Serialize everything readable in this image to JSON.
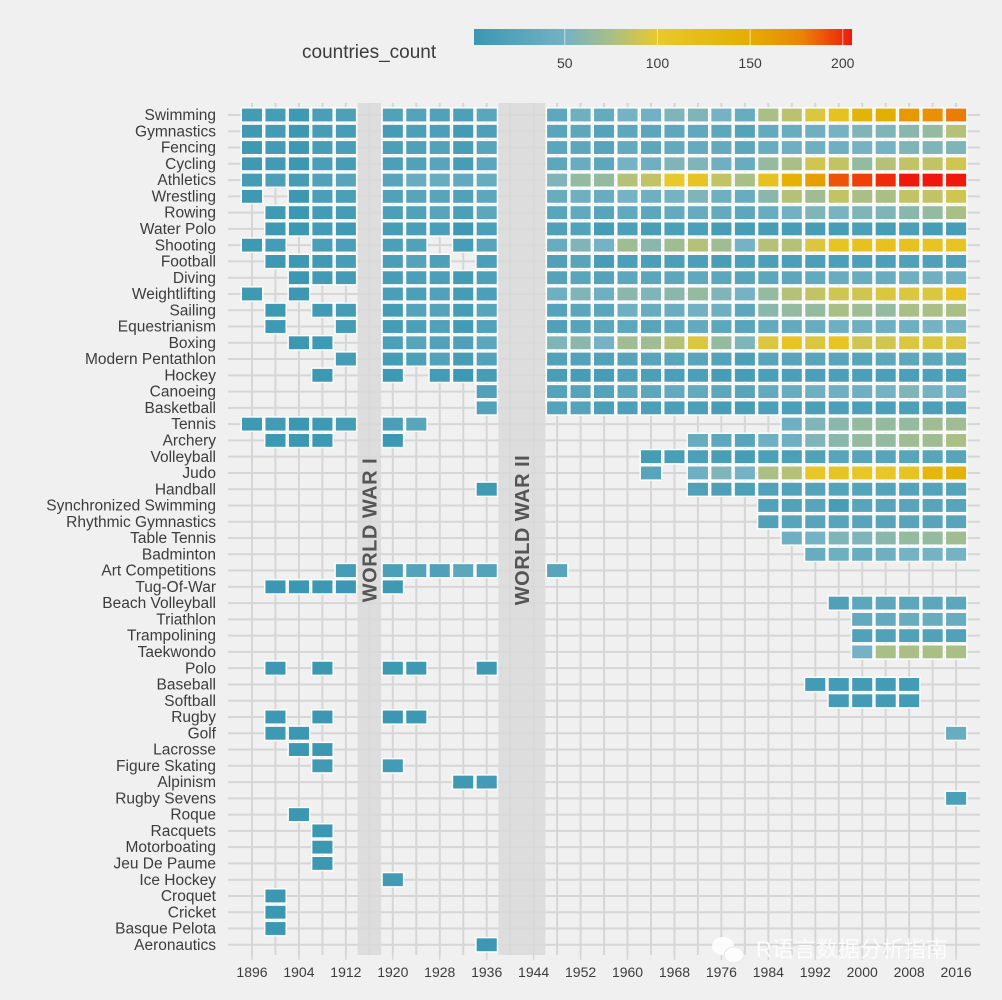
{
  "chart_data": {
    "type": "heatmap",
    "title": "",
    "xlabel": "",
    "ylabel": "",
    "legend": {
      "title": "countries_count",
      "placement": "top",
      "ticks": [
        "50",
        "100",
        "150",
        "200"
      ],
      "range": [
        1,
        205
      ]
    },
    "color_scale": [
      {
        "value": 1,
        "color": "#3b97b2"
      },
      {
        "value": 50,
        "color": "#74b2c4"
      },
      {
        "value": 78,
        "color": "#b0c07e"
      },
      {
        "value": 100,
        "color": "#e8c92c"
      },
      {
        "value": 150,
        "color": "#e3ae00"
      },
      {
        "value": 178,
        "color": "#ea8408"
      },
      {
        "value": 205,
        "color": "#f0180a"
      }
    ],
    "x_ticks": [
      "1896",
      "1904",
      "1912",
      "1920",
      "1928",
      "1936",
      "1944",
      "1952",
      "1960",
      "1968",
      "1976",
      "1984",
      "1992",
      "2000",
      "2008",
      "2016"
    ],
    "games": [
      1896,
      1900,
      1904,
      1908,
      1912,
      1920,
      1924,
      1928,
      1932,
      1936,
      1948,
      1952,
      1956,
      1960,
      1964,
      1968,
      1972,
      1976,
      1980,
      1984,
      1988,
      1992,
      1996,
      2000,
      2004,
      2008,
      2012,
      2016
    ],
    "annotations": [
      {
        "label": "WORLD WAR I",
        "years": [
          1916
        ]
      },
      {
        "label": "WORLD WAR II",
        "years": [
          1940,
          1944
        ]
      }
    ],
    "rows": [
      {
        "sport": "Swimming",
        "values": [
          9,
          12,
          4,
          14,
          17,
          19,
          23,
          20,
          17,
          28,
          31,
          45,
          37,
          50,
          48,
          55,
          55,
          50,
          40,
          75,
          82,
          95,
          115,
          140,
          148,
          165,
          170,
          180
        ]
      },
      {
        "sport": "Gymnastics",
        "values": [
          5,
          8,
          2,
          12,
          12,
          10,
          15,
          16,
          9,
          17,
          27,
          30,
          22,
          30,
          28,
          31,
          32,
          30,
          22,
          35,
          40,
          45,
          50,
          55,
          55,
          60,
          65,
          80
        ]
      },
      {
        "sport": "Fencing",
        "values": [
          4,
          8,
          3,
          12,
          14,
          15,
          18,
          21,
          13,
          25,
          28,
          30,
          25,
          35,
          30,
          35,
          37,
          35,
          30,
          40,
          45,
          45,
          45,
          50,
          50,
          55,
          55,
          55
        ]
      },
      {
        "sport": "Cycling",
        "values": [
          5,
          7,
          2,
          14,
          12,
          15,
          20,
          25,
          12,
          28,
          30,
          40,
          30,
          50,
          45,
          55,
          55,
          45,
          40,
          65,
          75,
          90,
          85,
          65,
          80,
          85,
          85,
          90
        ]
      },
      {
        "sport": "Athletics",
        "values": [
          10,
          15,
          10,
          20,
          25,
          25,
          40,
          40,
          34,
          40,
          55,
          65,
          65,
          80,
          85,
          100,
          110,
          85,
          75,
          115,
          145,
          160,
          190,
          195,
          200,
          205,
          205,
          205
        ]
      },
      {
        "sport": "Wrestling",
        "values": [
          5,
          null,
          2,
          14,
          15,
          20,
          25,
          25,
          20,
          30,
          40,
          45,
          40,
          50,
          45,
          50,
          55,
          45,
          40,
          60,
          80,
          70,
          85,
          75,
          75,
          85,
          85,
          90
        ]
      },
      {
        "sport": "Rowing",
        "values": [
          null,
          6,
          2,
          8,
          10,
          15,
          20,
          25,
          15,
          30,
          27,
          33,
          25,
          33,
          30,
          35,
          38,
          35,
          30,
          40,
          48,
          55,
          52,
          55,
          55,
          60,
          65,
          75
        ]
      },
      {
        "sport": "Water Polo",
        "values": [
          null,
          5,
          2,
          8,
          6,
          12,
          14,
          14,
          5,
          16,
          18,
          21,
          10,
          16,
          13,
          15,
          16,
          12,
          12,
          12,
          12,
          12,
          12,
          15,
          12,
          15,
          12,
          12
        ]
      },
      {
        "sport": "Shooting",
        "values": [
          4,
          10,
          null,
          14,
          16,
          15,
          20,
          null,
          12,
          25,
          40,
          55,
          50,
          70,
          60,
          70,
          80,
          70,
          50,
          80,
          80,
          95,
          110,
          115,
          115,
          115,
          110,
          110
        ]
      },
      {
        "sport": "Football",
        "values": [
          null,
          3,
          3,
          6,
          11,
          14,
          22,
          17,
          null,
          16,
          18,
          25,
          11,
          16,
          14,
          16,
          16,
          13,
          16,
          16,
          16,
          16,
          16,
          16,
          16,
          18,
          18,
          18
        ]
      },
      {
        "sport": "Diving",
        "values": [
          null,
          null,
          2,
          7,
          9,
          12,
          16,
          16,
          9,
          17,
          23,
          27,
          22,
          30,
          28,
          30,
          32,
          30,
          25,
          30,
          30,
          35,
          40,
          40,
          40,
          45,
          45,
          45
        ]
      },
      {
        "sport": "Weightlifting",
        "values": [
          4,
          null,
          2,
          null,
          null,
          14,
          15,
          19,
          10,
          16,
          45,
          55,
          45,
          60,
          55,
          60,
          65,
          55,
          50,
          65,
          80,
          85,
          90,
          90,
          95,
          95,
          95,
          110
        ]
      },
      {
        "sport": "Sailing",
        "values": [
          null,
          5,
          null,
          6,
          10,
          10,
          22,
          23,
          11,
          26,
          23,
          29,
          28,
          45,
          40,
          41,
          48,
          45,
          30,
          60,
          65,
          65,
          75,
          70,
          65,
          75,
          75,
          75
        ]
      },
      {
        "sport": "Equestrianism",
        "values": [
          null,
          5,
          null,
          null,
          10,
          10,
          16,
          20,
          9,
          21,
          18,
          24,
          29,
          30,
          25,
          30,
          35,
          30,
          25,
          35,
          35,
          40,
          45,
          45,
          45,
          45,
          50,
          50
        ]
      },
      {
        "sport": "Boxing",
        "values": [
          null,
          null,
          2,
          4,
          null,
          16,
          26,
          20,
          18,
          30,
          55,
          60,
          50,
          70,
          70,
          80,
          95,
          65,
          55,
          95,
          110,
          95,
          110,
          90,
          90,
          95,
          95,
          95
        ]
      },
      {
        "sport": "Modern Pentathlon",
        "values": [
          null,
          null,
          null,
          null,
          10,
          10,
          15,
          20,
          11,
          20,
          20,
          21,
          20,
          23,
          25,
          25,
          26,
          21,
          15,
          25,
          25,
          25,
          25,
          24,
          30,
          30,
          30,
          30
        ]
      },
      {
        "sport": "Hockey",
        "values": [
          null,
          null,
          null,
          3,
          null,
          5,
          null,
          9,
          3,
          11,
          13,
          12,
          12,
          18,
          15,
          16,
          16,
          12,
          12,
          16,
          16,
          16,
          16,
          16,
          16,
          16,
          16,
          16
        ]
      },
      {
        "sport": "Canoeing",
        "values": [
          null,
          null,
          null,
          null,
          null,
          null,
          null,
          null,
          null,
          19,
          22,
          24,
          22,
          30,
          30,
          35,
          35,
          30,
          25,
          35,
          40,
          45,
          45,
          45,
          50,
          55,
          50,
          50
        ]
      },
      {
        "sport": "Basketball",
        "values": [
          null,
          null,
          null,
          null,
          null,
          null,
          null,
          null,
          null,
          21,
          23,
          23,
          15,
          16,
          16,
          16,
          16,
          12,
          12,
          16,
          16,
          16,
          16,
          16,
          16,
          16,
          16,
          16
        ]
      },
      {
        "sport": "Tennis",
        "values": {
          "1896": 5,
          "1900": 7,
          "1904": 1,
          "1908": 5,
          "1912": 10,
          "1920": 14,
          "1924": 27,
          "1988": 45,
          "1992": 55,
          "1996": 60,
          "2000": 65,
          "2004": 65,
          "2008": 65,
          "2012": 70,
          "2016": 70
        }
      },
      {
        "sport": "Archery",
        "values": {
          "1900": 3,
          "1904": 1,
          "1908": 3,
          "1920": 2,
          "1972": 40,
          "1976": 30,
          "1980": 25,
          "1984": 45,
          "1988": 45,
          "1992": 55,
          "1996": 60,
          "2000": 65,
          "2004": 65,
          "2008": 70,
          "2012": 70,
          "2016": 75
        }
      },
      {
        "sport": "Volleyball",
        "values": {
          "1964": 10,
          "1968": 14,
          "1972": 16,
          "1976": 13,
          "1980": 12,
          "1984": 16,
          "1988": 15,
          "1992": 20,
          "1996": 25,
          "2000": 25,
          "2004": 25,
          "2008": 25,
          "2012": 25,
          "2016": 25
        }
      },
      {
        "sport": "Judo",
        "values": {
          "1964": 25,
          "1972": 45,
          "1976": 55,
          "1980": 50,
          "1984": 75,
          "1988": 80,
          "1992": 105,
          "1996": 110,
          "2000": 105,
          "2004": 105,
          "2008": 110,
          "2012": 135,
          "2016": 140
        }
      },
      {
        "sport": "Handball",
        "values": {
          "1936": 6,
          "1972": 18,
          "1976": 17,
          "1980": 15,
          "1984": 18,
          "1988": 20,
          "1992": 22,
          "1996": 22,
          "2000": 22,
          "2004": 22,
          "2008": 22,
          "2012": 22,
          "2016": 22
        }
      },
      {
        "sport": "Synchronized Swimming",
        "values": {
          "1984": 20,
          "1988": 20,
          "1992": 25,
          "1996": 12,
          "2000": 25,
          "2004": 25,
          "2008": 25,
          "2012": 25,
          "2016": 25
        }
      },
      {
        "sport": "Rhythmic Gymnastics",
        "values": {
          "1984": 20,
          "1988": 25,
          "1992": 25,
          "1996": 25,
          "2000": 25,
          "2004": 25,
          "2008": 25,
          "2012": 25,
          "2016": 25
        }
      },
      {
        "sport": "Table Tennis",
        "values": {
          "1988": 45,
          "1992": 50,
          "1996": 55,
          "2000": 55,
          "2004": 60,
          "2008": 65,
          "2012": 65,
          "2016": 70
        }
      },
      {
        "sport": "Badminton",
        "values": {
          "1992": 40,
          "1996": 45,
          "2000": 40,
          "2004": 45,
          "2008": 50,
          "2012": 50,
          "2016": 50
        }
      },
      {
        "sport": "Art Competitions",
        "values": {
          "1912": 11,
          "1920": 15,
          "1924": 22,
          "1928": 18,
          "1932": 30,
          "1936": 22,
          "1948": 25
        }
      },
      {
        "sport": "Tug-Of-War",
        "values": {
          "1900": 2,
          "1904": 1,
          "1908": 3,
          "1912": 2,
          "1920": 5
        }
      },
      {
        "sport": "Beach Volleyball",
        "values": {
          "1996": 18,
          "2000": 30,
          "2004": 30,
          "2008": 30,
          "2012": 30,
          "2016": 30
        }
      },
      {
        "sport": "Triathlon",
        "values": {
          "2000": 35,
          "2004": 35,
          "2008": 40,
          "2012": 40,
          "2016": 40
        }
      },
      {
        "sport": "Trampolining",
        "values": {
          "2000": 20,
          "2004": 20,
          "2008": 20,
          "2012": 20,
          "2016": 20
        }
      },
      {
        "sport": "Taekwondo",
        "values": {
          "2000": 50,
          "2004": 75,
          "2008": 75,
          "2012": 75,
          "2016": 75
        }
      },
      {
        "sport": "Polo",
        "values": {
          "1900": 3,
          "1908": 2,
          "1920": 4,
          "1924": 5,
          "1936": 5
        }
      },
      {
        "sport": "Baseball",
        "values": {
          "1992": 8,
          "1996": 8,
          "2000": 8,
          "2004": 8,
          "2008": 8
        }
      },
      {
        "sport": "Softball",
        "values": {
          "1996": 8,
          "2000": 8,
          "2004": 8,
          "2008": 8
        }
      },
      {
        "sport": "Rugby",
        "values": {
          "1900": 3,
          "1908": 2,
          "1920": 2,
          "1924": 3
        }
      },
      {
        "sport": "Golf",
        "values": {
          "1900": 4,
          "1904": 2,
          "2016": 40
        }
      },
      {
        "sport": "Lacrosse",
        "values": {
          "1904": 2,
          "1908": 2
        }
      },
      {
        "sport": "Figure Skating",
        "values": {
          "1908": 6,
          "1920": 8
        }
      },
      {
        "sport": "Alpinism",
        "values": {
          "1932": 5,
          "1936": 8
        }
      },
      {
        "sport": "Rugby Sevens",
        "values": {
          "2016": 15
        }
      },
      {
        "sport": "Roque",
        "values": {
          "1904": 1
        }
      },
      {
        "sport": "Racquets",
        "values": {
          "1908": 1
        }
      },
      {
        "sport": "Motorboating",
        "values": {
          "1908": 2
        }
      },
      {
        "sport": "Jeu De Paume",
        "values": {
          "1908": 2
        }
      },
      {
        "sport": "Ice Hockey",
        "values": {
          "1920": 7
        }
      },
      {
        "sport": "Croquet",
        "values": {
          "1900": 1
        }
      },
      {
        "sport": "Cricket",
        "values": {
          "1900": 2
        }
      },
      {
        "sport": "Basque Pelota",
        "values": {
          "1900": 2
        }
      },
      {
        "sport": "Aeronautics",
        "values": {
          "1936": 1
        }
      }
    ]
  },
  "watermark": {
    "text": "R语言数据分析指南",
    "icon": "wechat-icon"
  }
}
